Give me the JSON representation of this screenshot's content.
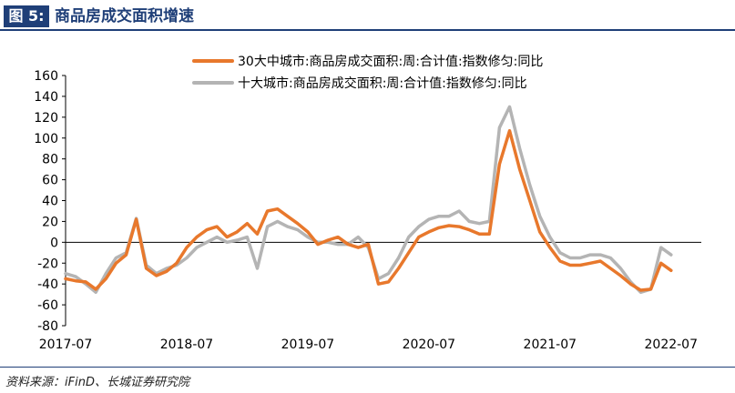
{
  "header": {
    "figure_label": "图 5:",
    "title": "商品房成交面积增速"
  },
  "footer": {
    "source": "资料来源：iFinD、长城证券研究院"
  },
  "colors": {
    "series_30": "#e8782c",
    "series_10": "#b4b4b4",
    "title_bar": "#1f3f78"
  },
  "chart_data": {
    "type": "line",
    "title": "",
    "xlabel": "",
    "ylabel": "",
    "ylim": [
      -80,
      160
    ],
    "yticks": [
      -80,
      -60,
      -40,
      -20,
      0,
      20,
      40,
      60,
      80,
      100,
      120,
      140,
      160
    ],
    "xlim": [
      "2017-07",
      "2022-10"
    ],
    "xtick_labels": [
      "2017-07",
      "2018-07",
      "2019-07",
      "2020-07",
      "2021-07",
      "2022-07"
    ],
    "grid": false,
    "legend": "top-center",
    "series": [
      {
        "name": "30大中城市:商品房成交面积:周:合计值:指数修匀:同比",
        "points": [
          [
            "2017-07",
            -35
          ],
          [
            "2017-08",
            -37
          ],
          [
            "2017-09",
            -38
          ],
          [
            "2017-10",
            -45
          ],
          [
            "2017-11",
            -35
          ],
          [
            "2017-12",
            -20
          ],
          [
            "2018-01",
            -12
          ],
          [
            "2018-02",
            22
          ],
          [
            "2018-03",
            -25
          ],
          [
            "2018-04",
            -32
          ],
          [
            "2018-05",
            -28
          ],
          [
            "2018-06",
            -20
          ],
          [
            "2018-07",
            -5
          ],
          [
            "2018-08",
            5
          ],
          [
            "2018-09",
            12
          ],
          [
            "2018-10",
            15
          ],
          [
            "2018-11",
            5
          ],
          [
            "2018-12",
            10
          ],
          [
            "2019-01",
            18
          ],
          [
            "2019-02",
            8
          ],
          [
            "2019-03",
            30
          ],
          [
            "2019-04",
            32
          ],
          [
            "2019-05",
            25
          ],
          [
            "2019-06",
            18
          ],
          [
            "2019-07",
            10
          ],
          [
            "2019-08",
            -2
          ],
          [
            "2019-09",
            2
          ],
          [
            "2019-10",
            5
          ],
          [
            "2019-11",
            -2
          ],
          [
            "2019-12",
            -5
          ],
          [
            "2020-01",
            -2
          ],
          [
            "2020-02",
            -40
          ],
          [
            "2020-03",
            -38
          ],
          [
            "2020-04",
            -25
          ],
          [
            "2020-05",
            -10
          ],
          [
            "2020-06",
            5
          ],
          [
            "2020-07",
            10
          ],
          [
            "2020-08",
            14
          ],
          [
            "2020-09",
            16
          ],
          [
            "2020-10",
            15
          ],
          [
            "2020-11",
            12
          ],
          [
            "2020-12",
            8
          ],
          [
            "2021-01",
            8
          ],
          [
            "2021-02",
            75
          ],
          [
            "2021-03",
            107
          ],
          [
            "2021-04",
            70
          ],
          [
            "2021-05",
            40
          ],
          [
            "2021-06",
            10
          ],
          [
            "2021-07",
            -5
          ],
          [
            "2021-08",
            -18
          ],
          [
            "2021-09",
            -22
          ],
          [
            "2021-10",
            -22
          ],
          [
            "2021-11",
            -20
          ],
          [
            "2021-12",
            -18
          ],
          [
            "2022-01",
            -25
          ],
          [
            "2022-02",
            -32
          ],
          [
            "2022-03",
            -40
          ],
          [
            "2022-04",
            -46
          ],
          [
            "2022-05",
            -45
          ],
          [
            "2022-06",
            -20
          ],
          [
            "2022-07",
            -27
          ]
        ]
      },
      {
        "name": "十大城市:商品房成交面积:周:合计值:指数修匀:同比",
        "points": [
          [
            "2017-07",
            -30
          ],
          [
            "2017-08",
            -33
          ],
          [
            "2017-09",
            -40
          ],
          [
            "2017-10",
            -48
          ],
          [
            "2017-11",
            -30
          ],
          [
            "2017-12",
            -15
          ],
          [
            "2018-01",
            -10
          ],
          [
            "2018-02",
            23
          ],
          [
            "2018-03",
            -22
          ],
          [
            "2018-04",
            -30
          ],
          [
            "2018-05",
            -25
          ],
          [
            "2018-06",
            -22
          ],
          [
            "2018-07",
            -15
          ],
          [
            "2018-08",
            -5
          ],
          [
            "2018-09",
            0
          ],
          [
            "2018-10",
            5
          ],
          [
            "2018-11",
            0
          ],
          [
            "2018-12",
            2
          ],
          [
            "2019-01",
            5
          ],
          [
            "2019-02",
            -25
          ],
          [
            "2019-03",
            15
          ],
          [
            "2019-04",
            20
          ],
          [
            "2019-05",
            15
          ],
          [
            "2019-06",
            12
          ],
          [
            "2019-07",
            5
          ],
          [
            "2019-08",
            0
          ],
          [
            "2019-09",
            0
          ],
          [
            "2019-10",
            -2
          ],
          [
            "2019-11",
            -2
          ],
          [
            "2019-12",
            5
          ],
          [
            "2020-01",
            -5
          ],
          [
            "2020-02",
            -35
          ],
          [
            "2020-03",
            -30
          ],
          [
            "2020-04",
            -15
          ],
          [
            "2020-05",
            5
          ],
          [
            "2020-06",
            15
          ],
          [
            "2020-07",
            22
          ],
          [
            "2020-08",
            25
          ],
          [
            "2020-09",
            25
          ],
          [
            "2020-10",
            30
          ],
          [
            "2020-11",
            20
          ],
          [
            "2020-12",
            18
          ],
          [
            "2021-01",
            20
          ],
          [
            "2021-02",
            110
          ],
          [
            "2021-03",
            130
          ],
          [
            "2021-04",
            90
          ],
          [
            "2021-05",
            55
          ],
          [
            "2021-06",
            25
          ],
          [
            "2021-07",
            5
          ],
          [
            "2021-08",
            -10
          ],
          [
            "2021-09",
            -15
          ],
          [
            "2021-10",
            -15
          ],
          [
            "2021-11",
            -12
          ],
          [
            "2021-12",
            -12
          ],
          [
            "2022-01",
            -15
          ],
          [
            "2022-02",
            -25
          ],
          [
            "2022-03",
            -38
          ],
          [
            "2022-04",
            -48
          ],
          [
            "2022-05",
            -45
          ],
          [
            "2022-06",
            -5
          ],
          [
            "2022-07",
            -12
          ]
        ]
      }
    ]
  }
}
